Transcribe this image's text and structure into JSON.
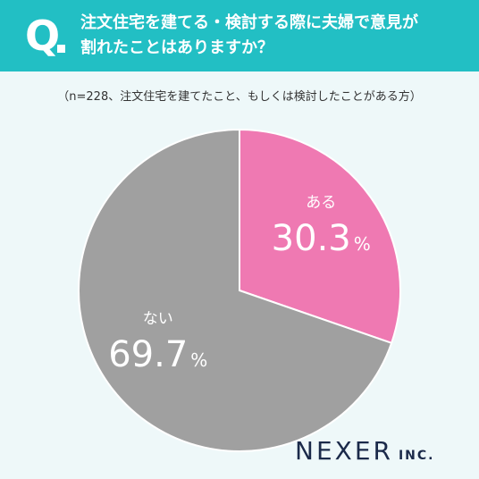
{
  "header": {
    "q_label": "Q",
    "question_line1": "注文住宅を建てる・検討する際に夫婦で意見が",
    "question_line2": "割れたことはありますか？",
    "bg_color": "#22bfc4"
  },
  "note": "（n=228、注文住宅を建てたこと、もしくは検討したことがある方）",
  "chart_data": {
    "type": "pie",
    "n": 228,
    "start_angle_deg": 0,
    "direction": "clockwise",
    "slices": [
      {
        "label": "ある",
        "value": 30.3,
        "display": "30.3",
        "unit": "%",
        "color": "#ef79b2"
      },
      {
        "label": "ない",
        "value": 69.7,
        "display": "69.7",
        "unit": "%",
        "color": "#a0a0a0"
      }
    ]
  },
  "logo": {
    "main": "NEXER",
    "sub": "INC."
  }
}
